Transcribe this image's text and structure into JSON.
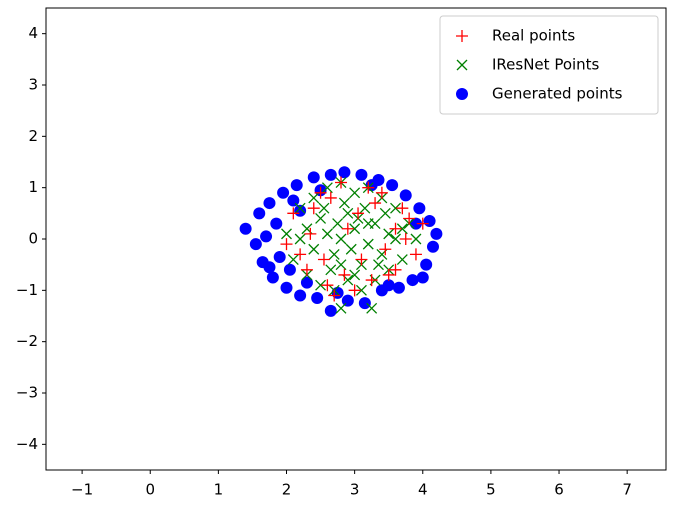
{
  "chart_data": {
    "type": "scatter",
    "xlim": [
      -1.53,
      7.57
    ],
    "ylim": [
      -4.5,
      4.5
    ],
    "xticks": [
      {
        "value": -1,
        "label": "−1"
      },
      0,
      1,
      2,
      3,
      4,
      5,
      6,
      7
    ],
    "yticks": [
      {
        "value": -4,
        "label": "−4"
      },
      {
        "value": -3,
        "label": "−3"
      },
      {
        "value": -2,
        "label": "−2"
      },
      {
        "value": -1,
        "label": "−1"
      },
      0,
      1,
      2,
      3,
      4
    ],
    "legend": "upper right",
    "series": [
      {
        "name": "Real points",
        "color": "#ff0000",
        "marker": "+",
        "x": [
          2.1,
          2.3,
          2.5,
          2.6,
          2.8,
          3.0,
          3.2,
          3.4,
          3.6,
          3.8,
          4.0,
          2.2,
          2.4,
          2.7,
          2.9,
          3.1,
          3.3,
          3.5,
          3.7,
          3.9,
          2.35,
          2.65,
          3.05,
          3.45,
          3.75,
          2.0,
          2.55,
          2.85,
          3.25,
          3.6
        ],
        "y": [
          0.5,
          -0.6,
          0.9,
          -0.9,
          1.1,
          -1.0,
          1.0,
          0.9,
          -0.6,
          0.4,
          0.3,
          -0.3,
          0.6,
          -1.1,
          0.2,
          -0.4,
          0.7,
          -0.7,
          0.6,
          -0.3,
          0.1,
          0.8,
          0.5,
          -0.2,
          0.0,
          -0.1,
          -0.4,
          -0.7,
          -0.8,
          0.2
        ]
      },
      {
        "name": "IResNet Points",
        "color": "#008000",
        "marker": "x",
        "x": [
          2.0,
          2.1,
          2.2,
          2.3,
          2.4,
          2.5,
          2.6,
          2.7,
          2.8,
          2.9,
          3.0,
          3.1,
          3.2,
          3.3,
          3.4,
          3.5,
          3.6,
          3.7,
          3.8,
          3.9,
          2.3,
          2.5,
          2.7,
          2.9,
          3.1,
          3.3,
          3.5,
          3.7,
          2.4,
          2.6,
          2.8,
          3.0,
          3.2,
          3.4,
          3.6,
          2.2,
          2.8,
          3.25,
          2.95,
          3.05,
          2.75,
          3.15,
          2.85,
          3.35,
          2.65,
          3.45,
          2.55,
          3.0,
          2.8,
          3.2
        ],
        "y": [
          0.1,
          -0.4,
          0.6,
          -0.7,
          0.8,
          -0.9,
          1.0,
          -1.0,
          1.1,
          -0.8,
          0.9,
          -1.0,
          1.0,
          -0.8,
          0.8,
          -0.6,
          0.6,
          -0.4,
          0.3,
          0.0,
          0.2,
          0.4,
          -0.3,
          0.5,
          -0.5,
          0.3,
          0.1,
          0.2,
          -0.2,
          0.1,
          -0.5,
          0.2,
          -0.1,
          -0.3,
          0.0,
          0.0,
          -1.35,
          -1.35,
          -0.2,
          0.4,
          0.3,
          0.6,
          0.7,
          -0.5,
          -0.6,
          0.5,
          0.6,
          -0.7,
          0.0,
          0.3
        ]
      },
      {
        "name": "Generated points",
        "color": "#0000ff",
        "marker": "o",
        "x": [
          1.4,
          1.55,
          1.6,
          1.65,
          1.75,
          1.8,
          1.95,
          2.0,
          2.15,
          2.2,
          2.4,
          2.45,
          2.65,
          2.65,
          2.85,
          2.9,
          3.1,
          3.15,
          3.35,
          3.4,
          3.55,
          3.65,
          3.75,
          3.85,
          3.95,
          4.05,
          4.1,
          4.15,
          4.2,
          4.0,
          1.7,
          1.85,
          1.9,
          2.1,
          2.3,
          2.5,
          2.75,
          3.25,
          3.5,
          3.9,
          1.75,
          2.05,
          2.2
        ],
        "y": [
          0.2,
          -0.1,
          0.5,
          -0.45,
          0.7,
          -0.75,
          0.9,
          -0.95,
          1.05,
          -1.1,
          1.2,
          -1.15,
          1.25,
          -1.4,
          1.3,
          -1.2,
          1.25,
          -1.25,
          1.15,
          -1.0,
          1.05,
          -0.95,
          0.85,
          -0.8,
          0.6,
          -0.5,
          0.35,
          -0.15,
          0.1,
          -0.75,
          0.05,
          0.3,
          -0.35,
          0.75,
          -0.85,
          0.95,
          -1.05,
          1.05,
          -0.9,
          0.3,
          -0.55,
          -0.6,
          0.55
        ]
      }
    ]
  }
}
